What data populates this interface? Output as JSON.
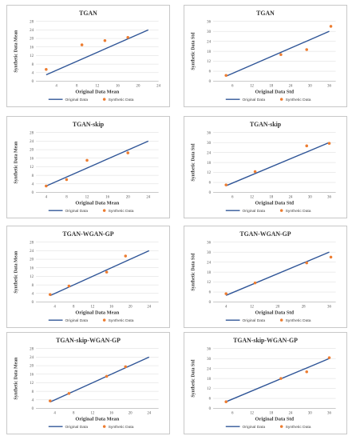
{
  "colors": {
    "original": "#2f5597",
    "synthetic": "#ed7d31",
    "grid": "#d9d9d9",
    "axis": "#bfbfbf"
  },
  "legend": {
    "original": "Original Data",
    "synthetic": "Synthetic Data"
  },
  "chart_data": [
    {
      "type": "scatter",
      "title": "TGAN",
      "xlabel": "Original Data Mean",
      "ylabel": "Synthetic Data Mean",
      "xlim": [
        0,
        24
      ],
      "ylim": [
        0,
        28
      ],
      "xticks": [
        4,
        8,
        12,
        16,
        20,
        24
      ],
      "yticks": [
        0,
        4,
        8,
        12,
        16,
        20,
        24,
        28
      ],
      "legend_position": "bottom",
      "series": [
        {
          "name": "Original Data",
          "kind": "line",
          "points": [
            [
              2,
              3
            ],
            [
              22,
              24
            ]
          ]
        },
        {
          "name": "Synthetic Data",
          "kind": "scatter",
          "points": [
            [
              2,
              5.5
            ],
            [
              9,
              17
            ],
            [
              13.5,
              19
            ],
            [
              18,
              20.5
            ]
          ]
        }
      ]
    },
    {
      "type": "scatter",
      "title": "TGAN",
      "xlabel": "Original Data Std",
      "ylabel": "Synthetic Data Std",
      "xlim": [
        0,
        38
      ],
      "ylim": [
        0,
        36
      ],
      "xticks": [
        6,
        12,
        18,
        24,
        30,
        36
      ],
      "yticks": [
        0,
        6,
        12,
        18,
        24,
        30,
        36
      ],
      "legend_position": "bottom",
      "series": [
        {
          "name": "Original Data",
          "kind": "line",
          "points": [
            [
              4,
              3
            ],
            [
              36,
              30
            ]
          ]
        },
        {
          "name": "Synthetic Data",
          "kind": "scatter",
          "points": [
            [
              4,
              3.5
            ],
            [
              21,
              16
            ],
            [
              29,
              19
            ],
            [
              36.5,
              33
            ]
          ]
        }
      ]
    },
    {
      "type": "scatter",
      "title": "TGAN-skip",
      "xlabel": "Original Data Mean",
      "ylabel": "Synthetic Data Mean",
      "xlim": [
        2,
        26
      ],
      "ylim": [
        0,
        28
      ],
      "xticks": [
        4,
        8,
        12,
        16,
        20,
        24
      ],
      "yticks": [
        0,
        4,
        8,
        12,
        16,
        20,
        24,
        28
      ],
      "legend_position": "bottom",
      "series": [
        {
          "name": "Original Data",
          "kind": "line",
          "points": [
            [
              4,
              3
            ],
            [
              24,
              24
            ]
          ]
        },
        {
          "name": "Synthetic Data",
          "kind": "scatter",
          "points": [
            [
              4,
              3
            ],
            [
              8,
              6
            ],
            [
              12,
              15
            ],
            [
              20,
              18.5
            ]
          ]
        }
      ]
    },
    {
      "type": "scatter",
      "title": "TGAN-skip",
      "xlabel": "Original Data Std",
      "ylabel": "Synthetic Data Std",
      "xlim": [
        0,
        38
      ],
      "ylim": [
        0,
        36
      ],
      "xticks": [
        6,
        12,
        18,
        24,
        30,
        36
      ],
      "yticks": [
        0,
        6,
        12,
        18,
        24,
        30,
        36
      ],
      "legend_position": "bottom",
      "series": [
        {
          "name": "Original Data",
          "kind": "line",
          "points": [
            [
              4,
              4
            ],
            [
              36,
              30
            ]
          ]
        },
        {
          "name": "Synthetic Data",
          "kind": "scatter",
          "points": [
            [
              4,
              4.5
            ],
            [
              13,
              12.5
            ],
            [
              29,
              28
            ],
            [
              36,
              29.5
            ]
          ]
        }
      ]
    },
    {
      "type": "scatter",
      "title": "TGAN-WGAN-GP",
      "xlabel": "Original Data Mean",
      "ylabel": "Synthetic Data Mean",
      "xlim": [
        0,
        26
      ],
      "ylim": [
        0,
        28
      ],
      "xticks": [
        4,
        8,
        12,
        16,
        20,
        24
      ],
      "yticks": [
        0,
        4,
        8,
        12,
        16,
        20,
        24,
        28
      ],
      "legend_position": "bottom",
      "series": [
        {
          "name": "Original Data",
          "kind": "line",
          "points": [
            [
              3,
              3
            ],
            [
              24,
              24
            ]
          ]
        },
        {
          "name": "Synthetic Data",
          "kind": "scatter",
          "points": [
            [
              3,
              3.5
            ],
            [
              7,
              7.5
            ],
            [
              15,
              14
            ],
            [
              19,
              21.5
            ]
          ]
        }
      ]
    },
    {
      "type": "scatter",
      "title": "TGAN-WGAN-GP",
      "xlabel": "Original Data Std",
      "ylabel": "Synthetic Data Std",
      "xlim": [
        0,
        38
      ],
      "ylim": [
        0,
        36
      ],
      "xticks": [
        4,
        12,
        20,
        28,
        36
      ],
      "yticks": [
        0,
        6,
        12,
        18,
        24,
        30,
        36
      ],
      "legend_position": "bottom",
      "series": [
        {
          "name": "Original Data",
          "kind": "line",
          "points": [
            [
              4,
              4
            ],
            [
              36,
              30
            ]
          ]
        },
        {
          "name": "Synthetic Data",
          "kind": "scatter",
          "points": [
            [
              4,
              5
            ],
            [
              13,
              11.5
            ],
            [
              29,
              23.5
            ],
            [
              36.5,
              27
            ]
          ]
        }
      ]
    },
    {
      "type": "scatter",
      "title": "TGAN-skip-WGAN-GP",
      "xlabel": "Original Data Mean",
      "ylabel": "Synthetic Data Mean",
      "xlim": [
        0,
        26
      ],
      "ylim": [
        0,
        28
      ],
      "xticks": [
        4,
        8,
        12,
        16,
        20,
        24
      ],
      "yticks": [
        0,
        4,
        8,
        12,
        16,
        20,
        24,
        28
      ],
      "legend_position": "bottom",
      "series": [
        {
          "name": "Original Data",
          "kind": "line",
          "points": [
            [
              3,
              3
            ],
            [
              24,
              24
            ]
          ]
        },
        {
          "name": "Synthetic Data",
          "kind": "scatter",
          "points": [
            [
              3,
              3.5
            ],
            [
              7,
              7
            ],
            [
              15,
              15
            ],
            [
              19,
              19.5
            ]
          ]
        }
      ]
    },
    {
      "type": "scatter",
      "title": "TGAN-skip-WGAN-GP",
      "xlabel": "Original Data Std",
      "ylabel": "Synthetic Data Std",
      "xlim": [
        0,
        38
      ],
      "ylim": [
        0,
        36
      ],
      "xticks": [
        6,
        12,
        18,
        24,
        30,
        36
      ],
      "yticks": [
        0,
        6,
        12,
        18,
        24,
        30,
        36
      ],
      "legend_position": "bottom",
      "series": [
        {
          "name": "Original Data",
          "kind": "line",
          "points": [
            [
              4,
              4
            ],
            [
              36,
              30
            ]
          ]
        },
        {
          "name": "Synthetic Data",
          "kind": "scatter",
          "points": [
            [
              4,
              4
            ],
            [
              21,
              18
            ],
            [
              29,
              22
            ],
            [
              36,
              30.5
            ]
          ]
        }
      ]
    }
  ]
}
